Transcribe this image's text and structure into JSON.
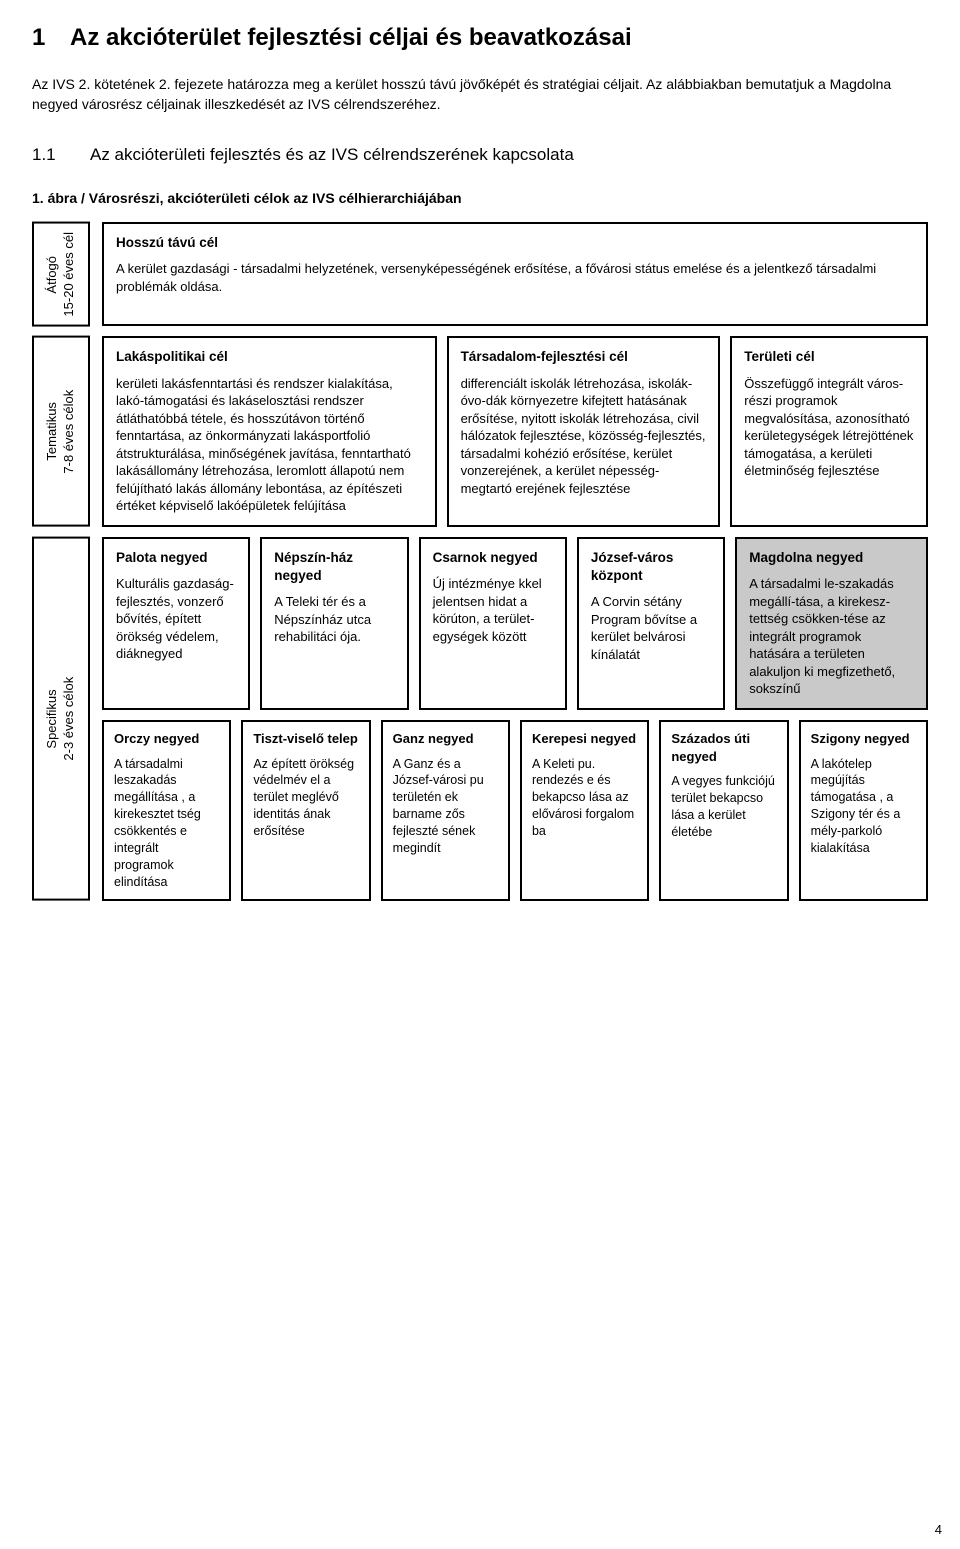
{
  "heading": {
    "num": "1",
    "title": "Az akcióterület fejlesztési céljai és beavatkozásai"
  },
  "intro1": "Az IVS 2. kötetének 2. fejezete határozza meg a kerület hosszú távú jövőképét és stratégiai céljait. Az alábbiakban bemutatjuk a Magdolna negyed városrész céljainak illeszkedését az IVS célrendszeréhez.",
  "sub": {
    "num": "1.1",
    "title": "Az akcióterületi fejlesztés és az IVS célrendszerének kapcsolata"
  },
  "caption": "1. ábra / Városrészi, akcióterületi célok az IVS célhierarchiájában",
  "sideLabels": {
    "atfogo": "Átfogó\n15-20 éves cél",
    "thematic": "Tematikus\n7-8 éves célok",
    "specific": "Specifikus\n2-3 éves célok"
  },
  "hosszu": {
    "title": "Hosszú távú cél",
    "body": "A kerület gazdasági - társadalmi helyzetének, versenyképességének erősítése, a fővárosi státus emelése és a jelentkező társadalmi problémák oldása."
  },
  "thematic": [
    {
      "title": "Lakáspolitikai cél",
      "body": "kerületi lakásfenntartási és rendszer kialakítása, lakó-támogatási és lakáselosztási rendszer átláthatóbbá tétele, és hosszútávon történő fenntartása, az önkormányzati lakásportfolió átstrukturálása, minőségének javítása, fenntartható lakásállomány létrehozása, leromlott állapotú nem felújítható lakás állomány lebontása, az építészeti értéket képviselő lakóépületek felújítása"
    },
    {
      "title": "Társadalom-fejlesztési cél",
      "body": "differenciált iskolák létrehozása, iskolák-óvo-dák környezetre kifejtett hatásának erősítése, nyitott iskolák létrehozása, civil hálózatok fejlesztése, közösség-fejlesztés, társadalmi kohézió erősítése, kerület vonzerejének, a kerület népesség-megtartó erejének fejlesztése"
    },
    {
      "title": "Területi cél",
      "body": "Összefüggő integrált város-részi programok megvalósítása, azonosítható kerületegységek létrejöttének támogatása, a kerületi életminőség fejlesztése"
    }
  ],
  "specTop": [
    {
      "title": "Palota negyed",
      "body": "Kulturális gazdaság-fejlesztés, vonzerő bővítés, épített örökség védelem, diáknegyed"
    },
    {
      "title": "Népszín-ház negyed",
      "body": "A Teleki tér és a Népszínház utca rehabilitáci ója."
    },
    {
      "title": "Csarnok negyed",
      "body": "Új intézménye kkel jelentsen hidat a körúton, a terület-egységek között"
    },
    {
      "title": "József-város központ",
      "body": "A Corvin sétány Program bővítse a kerület belvárosi kínálatát"
    },
    {
      "title": "Magdolna negyed",
      "body": "A társadalmi le-szakadás megállí-tása, a kirekesz-tettség csökken-tése az integrált programok hatására a területen alakuljon ki megfizethető, sokszínű",
      "highlight": true
    }
  ],
  "specBot": [
    {
      "title": "Orczy negyed",
      "body": "A társadalmi leszakadás megállítása , a kirekesztet tség csökkentés e integrált programok elindítása"
    },
    {
      "title": "Tiszt-viselő telep",
      "body": "Az épített örökség védelmév el a terület meglévő identitás ának erősítése"
    },
    {
      "title": "Ganz negyed",
      "body": "A Ganz és a József-városi pu területén ek barname zős fejleszté sének megindít"
    },
    {
      "title": "Kerepesi negyed",
      "body": "A Keleti pu. rendezés e és bekapcso lása az elővárosi forgalom ba"
    },
    {
      "title": "Százados úti negyed",
      "body": "A vegyes funkciójú terület bekapcso lása a kerület életébe"
    },
    {
      "title": "Szigony negyed",
      "body": "A lakótelep megújítás támogatása , a Szigony tér és a mély-parkoló kialakítása"
    }
  ],
  "pageNumber": "4",
  "colors": {
    "highlightBg": "#c9c9c9",
    "border": "#000000",
    "text": "#000000",
    "background": "#ffffff"
  }
}
